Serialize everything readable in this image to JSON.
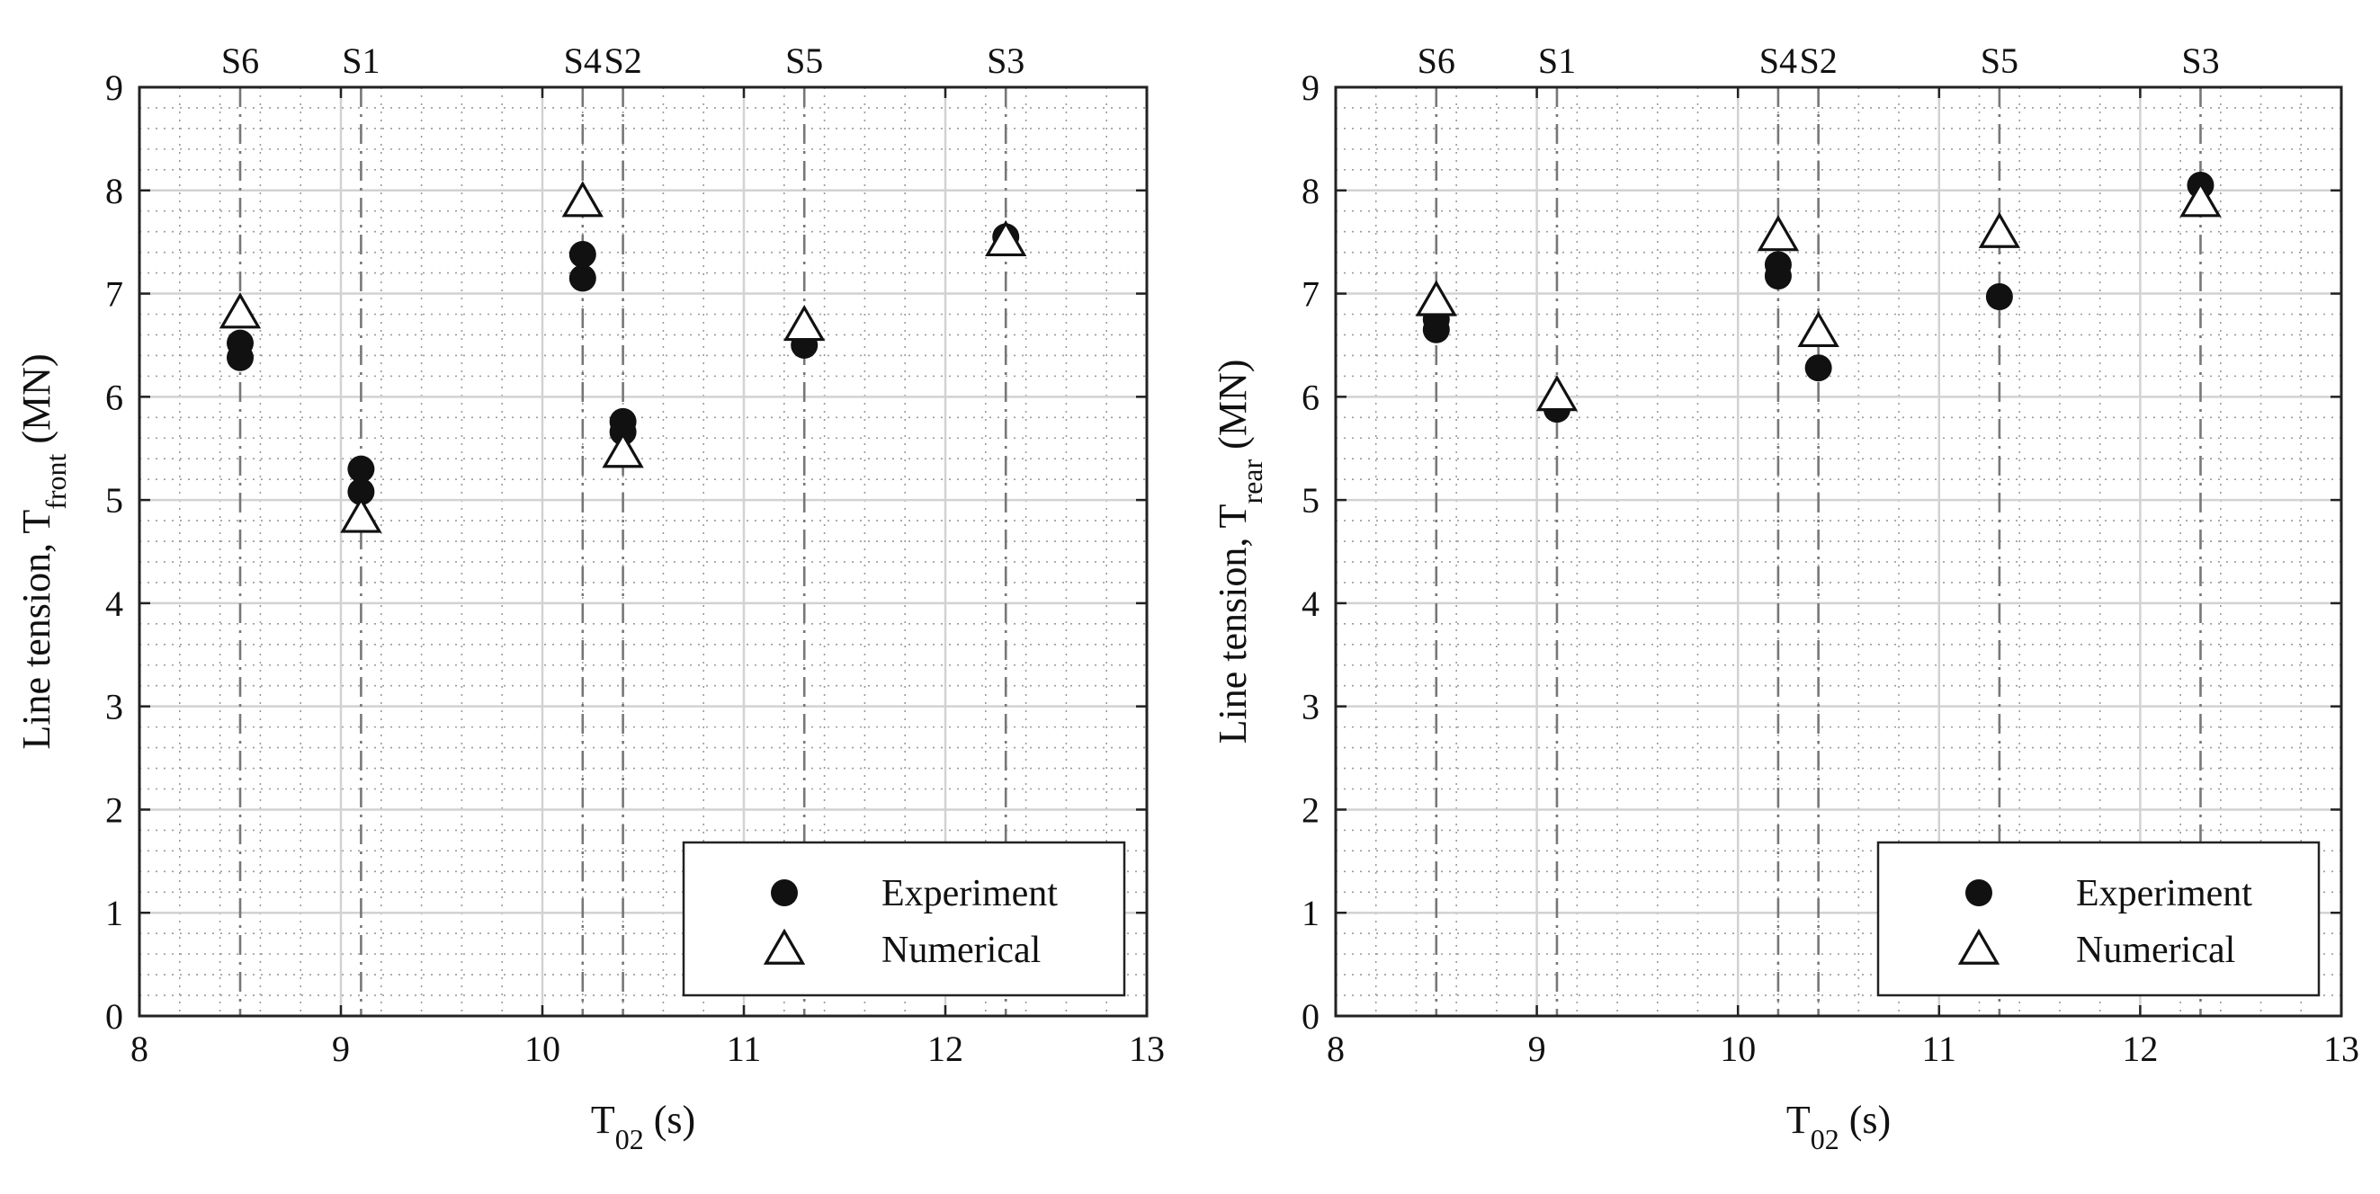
{
  "chart_data": [
    {
      "type": "scatter",
      "panel": "front",
      "ylabel_main": "Line tension, T",
      "ylabel_sub": "front",
      "ylabel_unit": "(MN)",
      "xlabel_main": "T",
      "xlabel_sub": "02",
      "xlabel_unit": "(s)",
      "xlim": [
        8,
        13
      ],
      "ylim": [
        0,
        9
      ],
      "xticks": [
        "8",
        "9",
        "10",
        "11",
        "12",
        "13"
      ],
      "yticks": [
        "0",
        "1",
        "2",
        "3",
        "4",
        "5",
        "6",
        "7",
        "8",
        "9"
      ],
      "grid": true,
      "legend_position": "bottom-right",
      "state_lines": [
        {
          "label": "S6",
          "x": 8.5
        },
        {
          "label": "S1",
          "x": 9.1
        },
        {
          "label": "S4",
          "x": 10.2
        },
        {
          "label": "S2",
          "x": 10.4
        },
        {
          "label": "S5",
          "x": 11.3
        },
        {
          "label": "S3",
          "x": 12.3
        }
      ],
      "series": [
        {
          "name": "Experiment",
          "marker": "filled-circle",
          "x": [
            8.5,
            8.5,
            9.1,
            9.1,
            10.2,
            10.2,
            10.4,
            10.4,
            11.3,
            12.3
          ],
          "y": [
            6.52,
            6.38,
            5.3,
            5.08,
            7.38,
            7.15,
            5.76,
            5.66,
            6.5,
            7.55
          ]
        },
        {
          "name": "Numerical",
          "marker": "open-triangle",
          "x": [
            8.5,
            9.1,
            10.2,
            10.4,
            11.3,
            12.3
          ],
          "y": [
            6.8,
            4.82,
            7.88,
            5.45,
            6.68,
            7.5
          ]
        }
      ]
    },
    {
      "type": "scatter",
      "panel": "rear",
      "ylabel_main": "Line tension, T",
      "ylabel_sub": "rear",
      "ylabel_unit": "(MN)",
      "xlabel_main": "T",
      "xlabel_sub": "02",
      "xlabel_unit": "(s)",
      "xlim": [
        8,
        13
      ],
      "ylim": [
        0,
        9
      ],
      "xticks": [
        "8",
        "9",
        "10",
        "11",
        "12",
        "13"
      ],
      "yticks": [
        "0",
        "1",
        "2",
        "3",
        "4",
        "5",
        "6",
        "7",
        "8",
        "9"
      ],
      "grid": true,
      "legend_position": "bottom-right",
      "state_lines": [
        {
          "label": "S6",
          "x": 8.5
        },
        {
          "label": "S1",
          "x": 9.1
        },
        {
          "label": "S4",
          "x": 10.2
        },
        {
          "label": "S2",
          "x": 10.4
        },
        {
          "label": "S5",
          "x": 11.3
        },
        {
          "label": "S3",
          "x": 12.3
        }
      ],
      "series": [
        {
          "name": "Experiment",
          "marker": "filled-circle",
          "x": [
            8.5,
            8.5,
            9.1,
            10.2,
            10.2,
            10.4,
            11.3,
            12.3
          ],
          "y": [
            6.75,
            6.65,
            5.88,
            7.28,
            7.17,
            6.28,
            6.97,
            8.05
          ]
        },
        {
          "name": "Numerical",
          "marker": "open-triangle",
          "x": [
            8.5,
            9.1,
            10.2,
            10.4,
            11.3,
            12.3
          ],
          "y": [
            6.92,
            6.0,
            7.55,
            6.62,
            7.58,
            7.88
          ]
        }
      ]
    }
  ]
}
